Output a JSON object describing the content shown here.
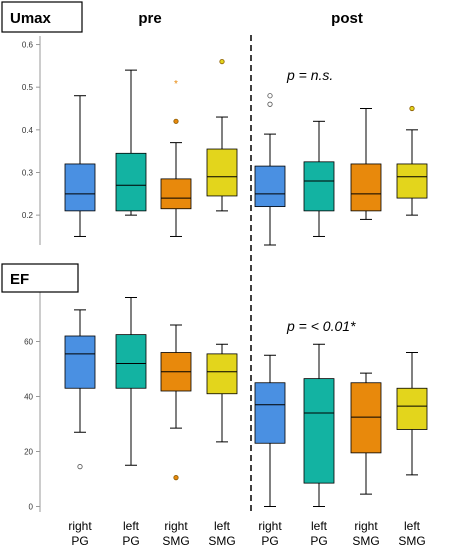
{
  "colors": {
    "right_PG": "#4a90e2",
    "left_PG": "#13b3a2",
    "right_SMG": "#e8890c",
    "left_SMG": "#e3d51c",
    "divider": "#000000",
    "axis": "#999999"
  },
  "chart_data": [
    {
      "type": "boxplot",
      "label": "Umax",
      "group_titles": [
        "pre",
        "post"
      ],
      "annotation": "p = n.s.",
      "ylim": [
        0.13,
        0.62
      ],
      "yticks": [
        "0.2",
        "0.3",
        "0.4",
        "0.5",
        "0.6"
      ],
      "ytick_values": [
        0.2,
        0.3,
        0.4,
        0.5,
        0.6
      ],
      "boxes": [
        {
          "group": "pre",
          "category": "right PG",
          "color_key": "right_PG",
          "min": 0.15,
          "q1": 0.21,
          "median": 0.25,
          "q3": 0.32,
          "max": 0.48,
          "outliers": []
        },
        {
          "group": "pre",
          "category": "left PG",
          "color_key": "left_PG",
          "min": 0.2,
          "q1": 0.21,
          "median": 0.27,
          "q3": 0.345,
          "max": 0.54,
          "outliers": []
        },
        {
          "group": "pre",
          "category": "right SMG",
          "color_key": "right_SMG",
          "min": 0.15,
          "q1": 0.215,
          "median": 0.24,
          "q3": 0.285,
          "max": 0.37,
          "outliers": [
            0.42
          ],
          "extremes": [
            0.51
          ]
        },
        {
          "group": "pre",
          "category": "left SMG",
          "color_key": "left_SMG",
          "min": 0.21,
          "q1": 0.245,
          "median": 0.29,
          "q3": 0.355,
          "max": 0.43,
          "outliers": [
            0.56
          ]
        },
        {
          "group": "post",
          "category": "right PG",
          "color_key": "right_PG",
          "min": 0.13,
          "q1": 0.22,
          "median": 0.25,
          "q3": 0.315,
          "max": 0.39,
          "outliers": [
            0.46,
            0.48
          ]
        },
        {
          "group": "post",
          "category": "left PG",
          "color_key": "left_PG",
          "min": 0.15,
          "q1": 0.21,
          "median": 0.28,
          "q3": 0.325,
          "max": 0.42,
          "outliers": []
        },
        {
          "group": "post",
          "category": "right SMG",
          "color_key": "right_SMG",
          "min": 0.19,
          "q1": 0.21,
          "median": 0.25,
          "q3": 0.32,
          "max": 0.45,
          "outliers": []
        },
        {
          "group": "post",
          "category": "left SMG",
          "color_key": "left_SMG",
          "min": 0.2,
          "q1": 0.24,
          "median": 0.29,
          "q3": 0.32,
          "max": 0.4,
          "outliers": [
            0.45
          ]
        }
      ]
    },
    {
      "type": "boxplot",
      "label": "EF",
      "annotation": "p = < 0.01*",
      "ylim": [
        -2,
        78
      ],
      "yticks": [
        "0",
        "20",
        "40",
        "60"
      ],
      "ytick_values": [
        0,
        20,
        40,
        60
      ],
      "boxes": [
        {
          "group": "pre",
          "category": "right PG",
          "color_key": "right_PG",
          "min": 27,
          "q1": 43,
          "median": 55.5,
          "q3": 62,
          "max": 71.5,
          "outliers": [
            14.5
          ]
        },
        {
          "group": "pre",
          "category": "left PG",
          "color_key": "left_PG",
          "min": 15,
          "q1": 43,
          "median": 52,
          "q3": 62.5,
          "max": 76,
          "outliers": []
        },
        {
          "group": "pre",
          "category": "right SMG",
          "color_key": "right_SMG",
          "min": 28.5,
          "q1": 42,
          "median": 49,
          "q3": 56,
          "max": 66,
          "outliers": [
            10.5
          ]
        },
        {
          "group": "pre",
          "category": "left SMG",
          "color_key": "left_SMG",
          "min": 23.5,
          "q1": 41,
          "median": 49,
          "q3": 55.5,
          "max": 59,
          "outliers": []
        },
        {
          "group": "post",
          "category": "right PG",
          "color_key": "right_PG",
          "min": 0,
          "q1": 23,
          "median": 37,
          "q3": 45,
          "max": 55,
          "outliers": []
        },
        {
          "group": "post",
          "category": "left PG",
          "color_key": "left_PG",
          "min": 0,
          "q1": 8.5,
          "median": 34,
          "q3": 46.5,
          "max": 59,
          "outliers": []
        },
        {
          "group": "post",
          "category": "right SMG",
          "color_key": "right_SMG",
          "min": 4.5,
          "q1": 19.5,
          "median": 32.5,
          "q3": 45,
          "max": 48.5,
          "outliers": []
        },
        {
          "group": "post",
          "category": "left SMG",
          "color_key": "left_SMG",
          "min": 11.5,
          "q1": 28,
          "median": 36.5,
          "q3": 43,
          "max": 56,
          "outliers": []
        }
      ]
    }
  ],
  "x_labels": [
    {
      "line1": "right",
      "line2": "PG"
    },
    {
      "line1": "left",
      "line2": "PG"
    },
    {
      "line1": "right",
      "line2": "SMG"
    },
    {
      "line1": "left",
      "line2": "SMG"
    },
    {
      "line1": "right",
      "line2": "PG"
    },
    {
      "line1": "left",
      "line2": "PG"
    },
    {
      "line1": "right",
      "line2": "SMG"
    },
    {
      "line1": "left",
      "line2": "SMG"
    }
  ]
}
